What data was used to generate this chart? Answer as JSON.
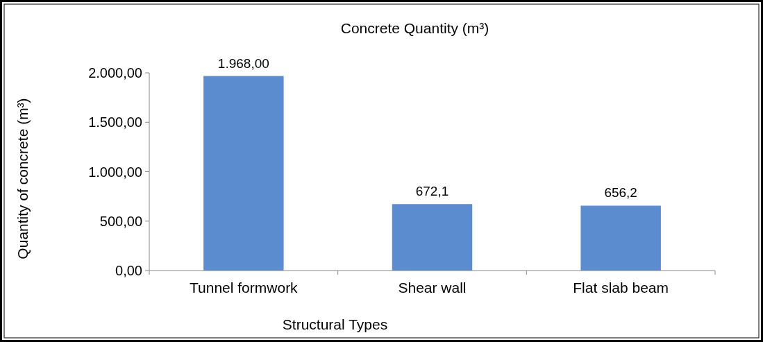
{
  "chart_data": {
    "type": "bar",
    "title": "Concrete Quantity (m³)",
    "xlabel": "Structural Types",
    "ylabel": "Quantity of concrete (m³)",
    "categories": [
      "Tunnel formwork",
      "Shear wall",
      "Flat slab beam"
    ],
    "values": [
      1968,
      672.1,
      656.2
    ],
    "value_labels": [
      "1.968,00",
      "672,1",
      "656,2"
    ],
    "color": "#5a8ccf",
    "ylim": [
      0,
      2000
    ],
    "yticks": [
      {
        "value": 0,
        "label": "0,00"
      },
      {
        "value": 500,
        "label": "500,00"
      },
      {
        "value": 1000,
        "label": "1.000,00"
      },
      {
        "value": 1500,
        "label": "1.500,00"
      },
      {
        "value": 2000,
        "label": "2.000,00"
      }
    ],
    "grid": false
  }
}
